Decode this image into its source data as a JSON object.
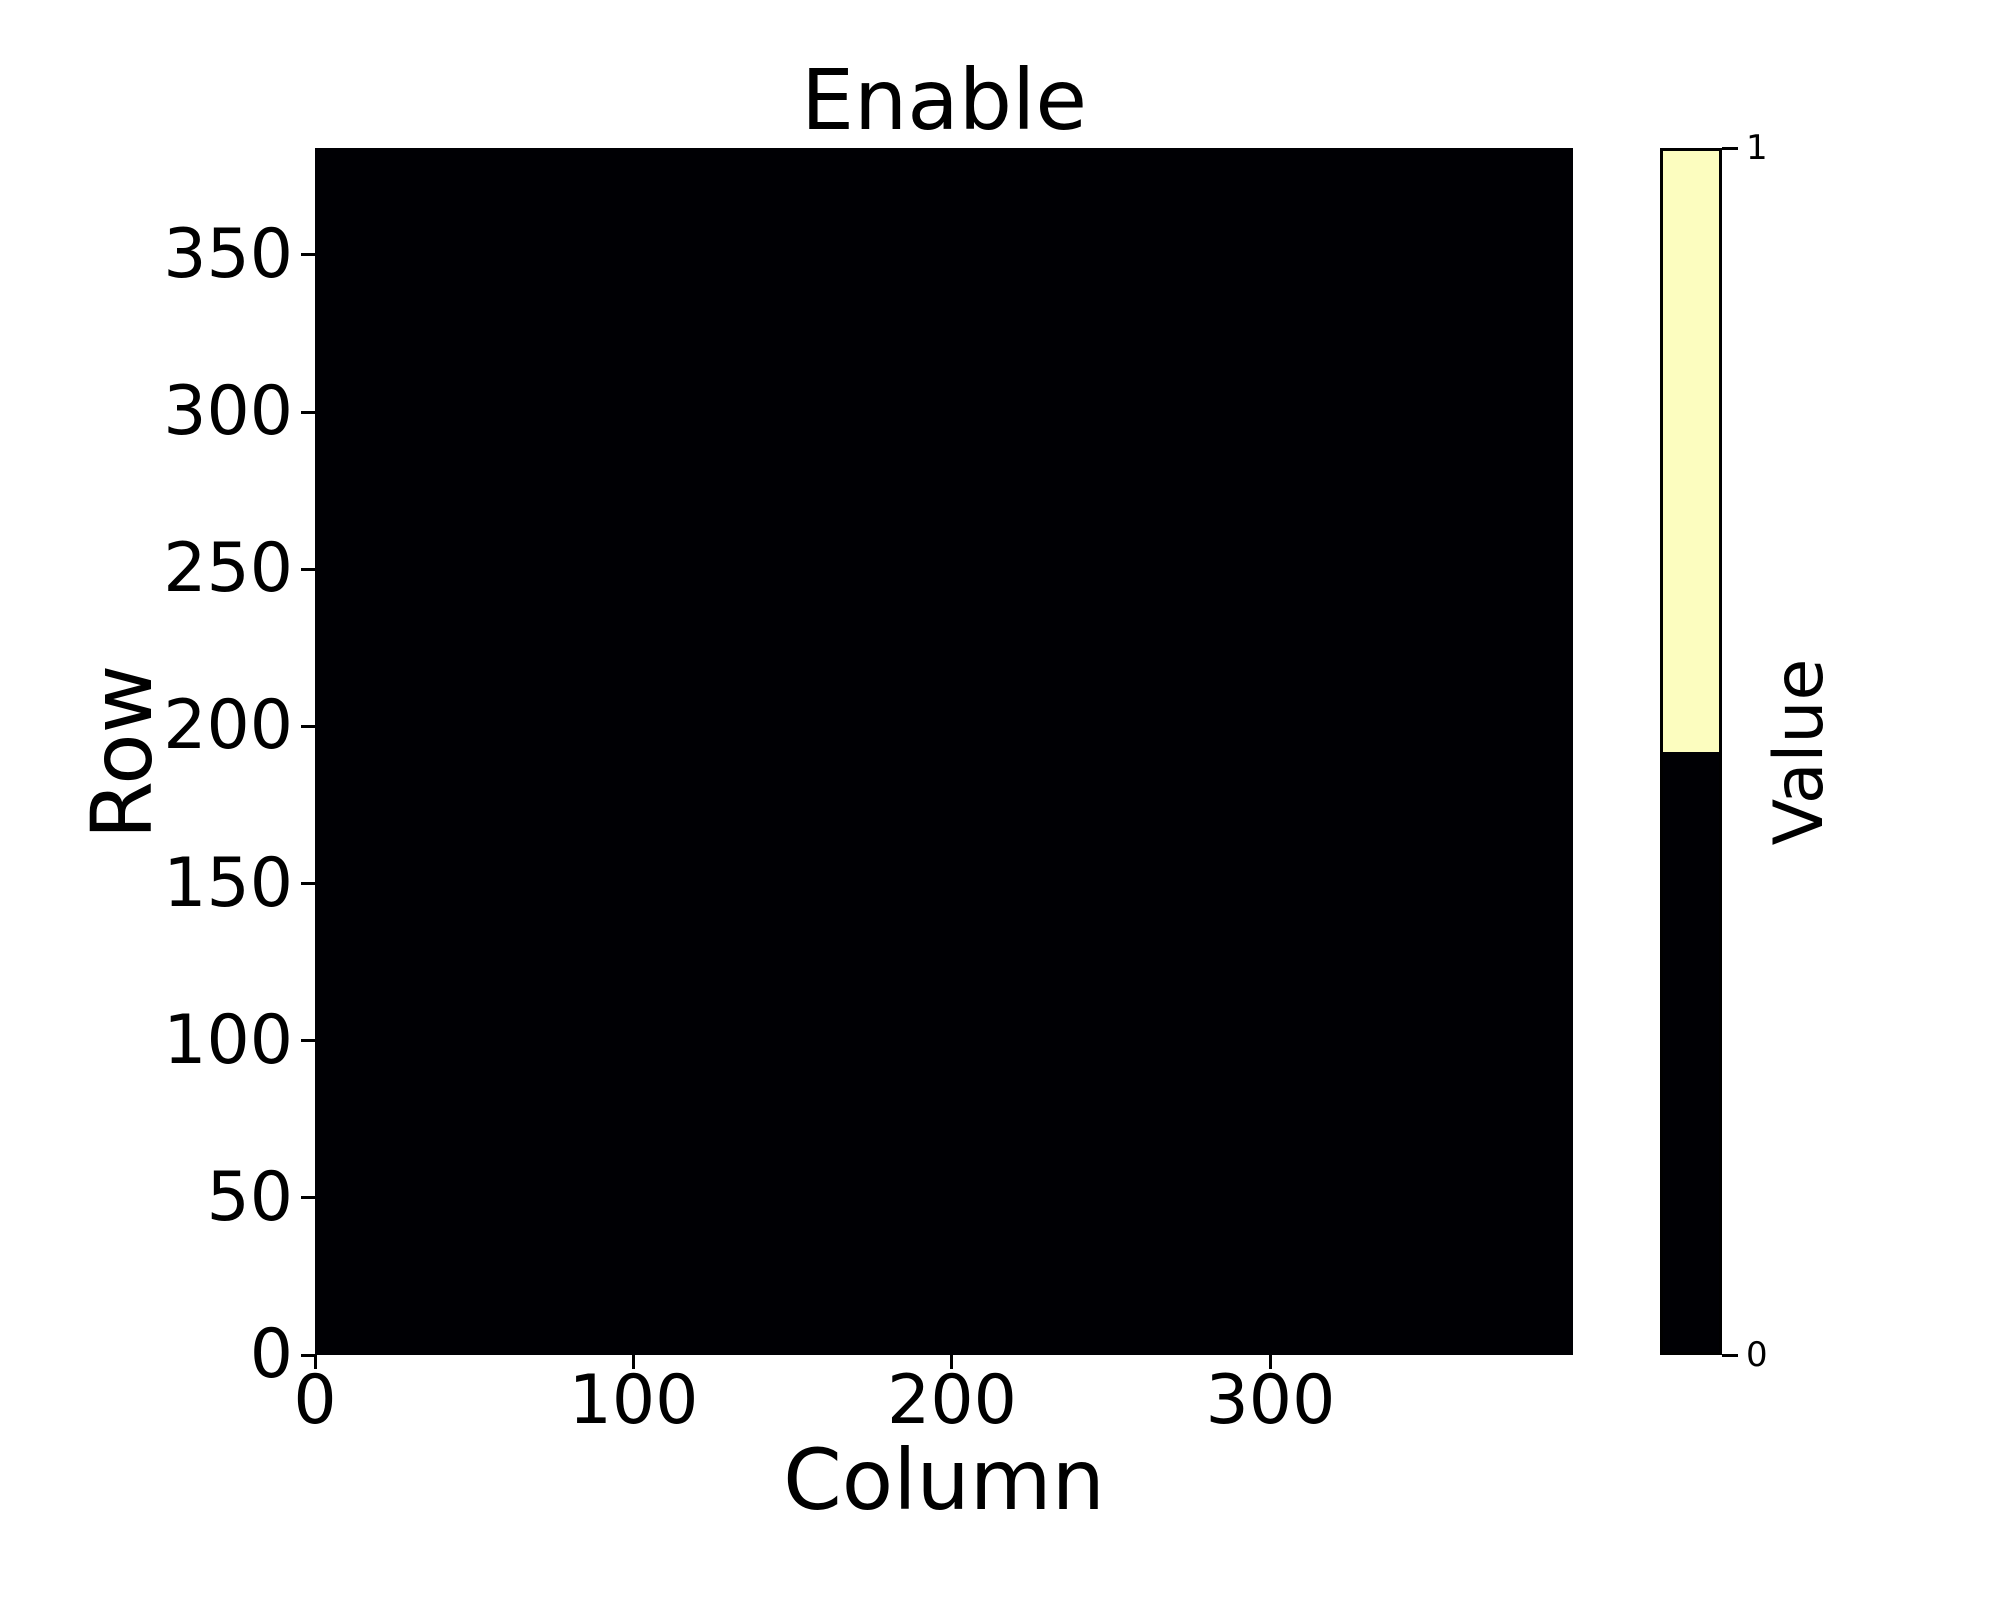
{
  "chart_data": {
    "type": "heatmap",
    "title": "Enable",
    "xlabel": "Column",
    "ylabel": "Row",
    "xlim": [
      0,
      395
    ],
    "ylim": [
      0,
      384
    ],
    "x_ticks": [
      0,
      100,
      200,
      300
    ],
    "y_ticks": [
      0,
      50,
      100,
      150,
      200,
      250,
      300,
      350
    ],
    "grid": false,
    "background_color": "#ffffff",
    "data_summary": {
      "description": "Uniform binary mask: every cell has value 0 (rendered black)",
      "uniform_value": 0,
      "n_rows": 384,
      "n_cols": 395
    },
    "value_colors": {
      "0": "#000004",
      "1": "#FCFDBF"
    },
    "colorbar": {
      "label": "Value",
      "legend_position": "right",
      "ticks": [
        {
          "value": 1,
          "label": "1",
          "fraction": 1.0
        },
        {
          "value": 0,
          "label": "0",
          "fraction": 0.0
        }
      ],
      "segments": [
        {
          "value": 1,
          "color": "#FCFDBF",
          "from_fraction": 0.5,
          "to_fraction": 1.0
        },
        {
          "value": 0,
          "color": "#000004",
          "from_fraction": 0.0,
          "to_fraction": 0.5
        }
      ]
    }
  }
}
